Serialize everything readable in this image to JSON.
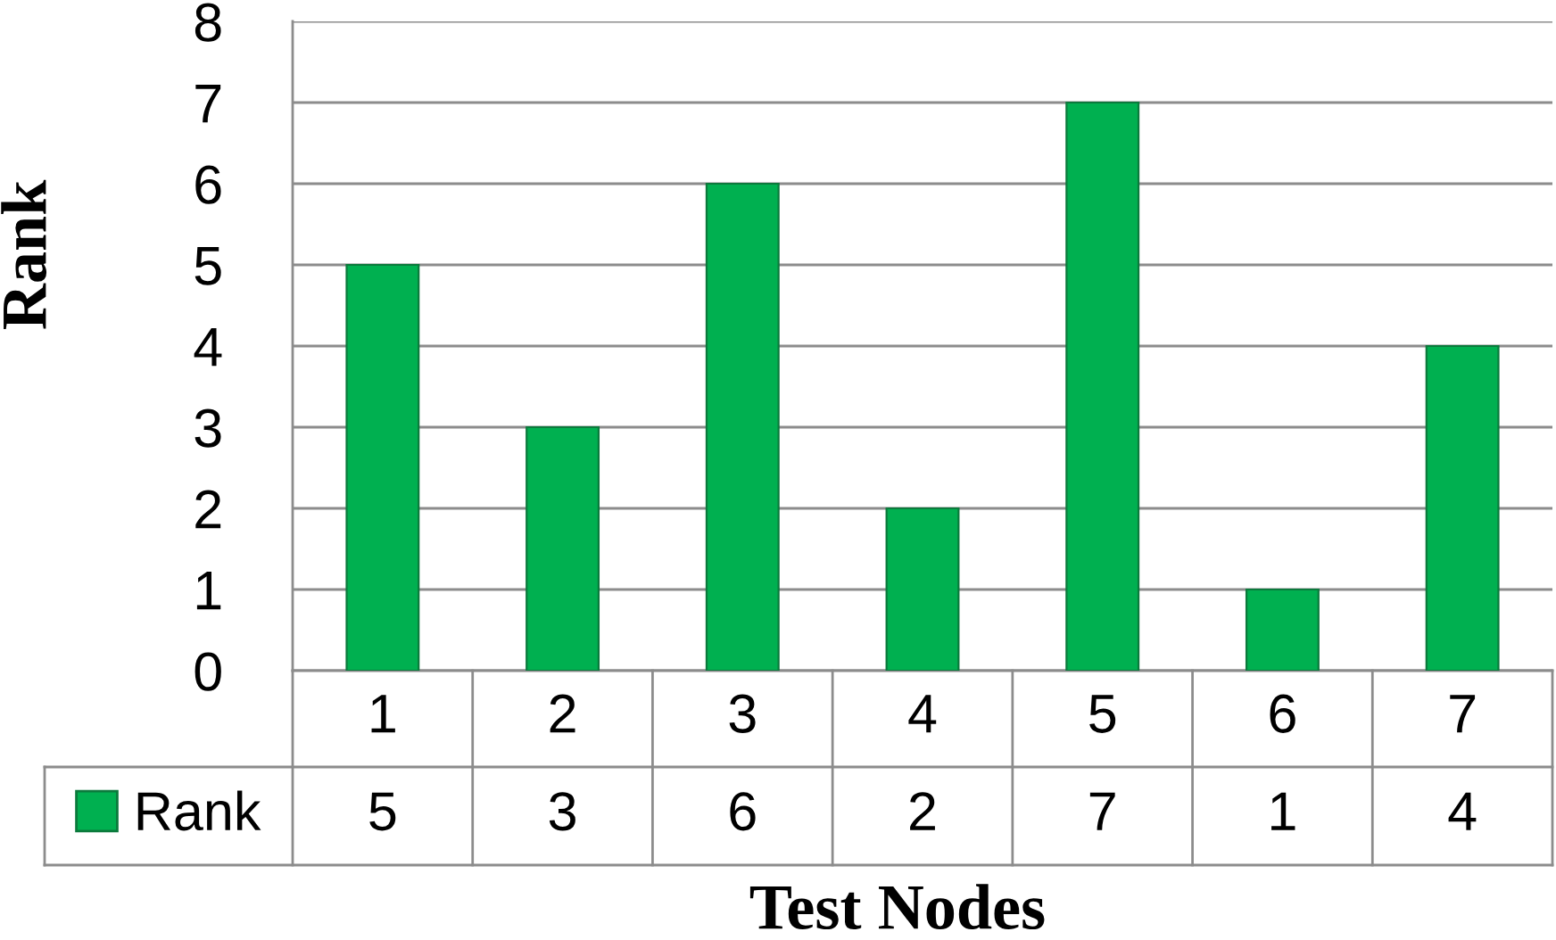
{
  "chart_data": {
    "type": "bar",
    "xlabel": "Test Nodes",
    "ylabel": "Rank",
    "categories": [
      "1",
      "2",
      "3",
      "4",
      "5",
      "6",
      "7"
    ],
    "series": [
      {
        "name": "Rank",
        "color": "#00b050",
        "values": [
          5,
          3,
          6,
          2,
          7,
          1,
          4
        ]
      }
    ],
    "ylim": [
      0,
      8
    ],
    "yticks": [
      0,
      1,
      2,
      3,
      4,
      5,
      6,
      7,
      8
    ],
    "grid": "y",
    "legend": "bottom left",
    "data_labels": true
  }
}
